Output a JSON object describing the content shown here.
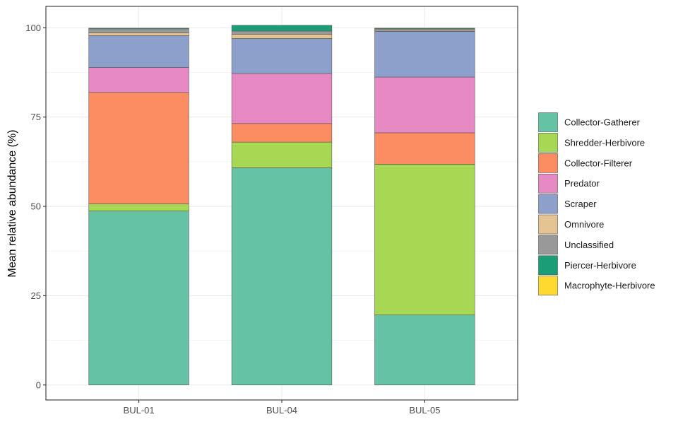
{
  "chart_data": {
    "type": "bar",
    "stacked": true,
    "title": "",
    "xlabel": "",
    "ylabel": "Mean relative abundance (%)",
    "ylim": [
      -4.2,
      106
    ],
    "yticks": [
      0,
      25,
      50,
      75,
      100
    ],
    "grid": true,
    "legend_position": "right",
    "categories": [
      "BUL-01",
      "BUL-04",
      "BUL-05"
    ],
    "series": [
      {
        "name": "Collector-Gatherer",
        "color": "#66C2A5",
        "values": [
          48.7,
          60.8,
          19.6
        ]
      },
      {
        "name": "Shredder-Herbivore",
        "color": "#A6D854",
        "values": [
          2.0,
          7.2,
          42.2
        ]
      },
      {
        "name": "Collector-Filterer",
        "color": "#FC8D62",
        "values": [
          31.2,
          5.2,
          8.8
        ]
      },
      {
        "name": "Predator",
        "color": "#E78AC3",
        "values": [
          7.0,
          14.0,
          15.6
        ]
      },
      {
        "name": "Scraper",
        "color": "#8DA0CB",
        "values": [
          8.9,
          9.8,
          12.8
        ]
      },
      {
        "name": "Omnivore",
        "color": "#E5C494",
        "values": [
          0.8,
          1.2,
          0.3
        ]
      },
      {
        "name": "Unclassified",
        "color": "#999999",
        "values": [
          1.1,
          0.9,
          0.4
        ]
      },
      {
        "name": "Piercer-Herbivore",
        "color": "#1B9E77",
        "values": [
          0.2,
          1.6,
          0.2
        ]
      },
      {
        "name": "Macrophyte-Herbivore",
        "color": "#FFD92F",
        "values": [
          0.0,
          0.0,
          0.0
        ]
      }
    ]
  }
}
